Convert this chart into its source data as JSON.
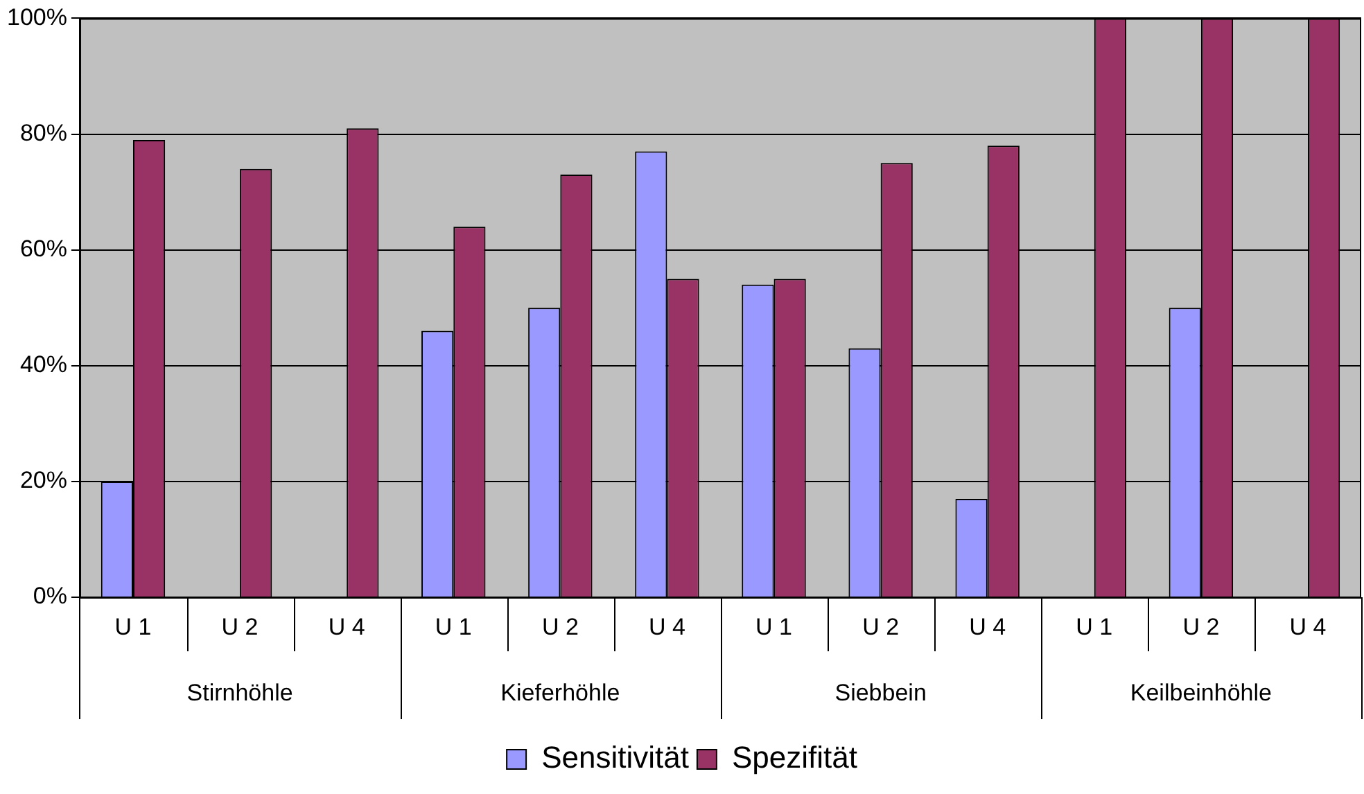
{
  "chart_data": {
    "type": "bar",
    "categories": [
      "U 1",
      "U 2",
      "U 4",
      "U 1",
      "U 2",
      "U 4",
      "U 1",
      "U 2",
      "U 4",
      "U 1",
      "U 2",
      "U 4"
    ],
    "annotations": [
      "Stirnhöhle",
      "Kieferhöhle",
      "Siebbein",
      "Keilbeinhöhle"
    ],
    "series": [
      {
        "name": "Sensitivität",
        "color": "#9999ff",
        "values": [
          20,
          0,
          0,
          46,
          50,
          77,
          54,
          43,
          17,
          0,
          50,
          0
        ]
      },
      {
        "name": "Spezifität",
        "color": "#993366",
        "values": [
          79,
          74,
          81,
          64,
          73,
          55,
          55,
          75,
          78,
          100,
          100,
          100
        ]
      }
    ],
    "ylim": [
      0,
      100
    ],
    "yticks": [
      {
        "value": 0,
        "label": "0%"
      },
      {
        "value": 20,
        "label": "20%"
      },
      {
        "value": 40,
        "label": "40%"
      },
      {
        "value": 60,
        "label": "60%"
      },
      {
        "value": 80,
        "label": "80%"
      },
      {
        "value": 100,
        "label": "100%"
      }
    ],
    "grid": "y",
    "legend": "bottom"
  }
}
